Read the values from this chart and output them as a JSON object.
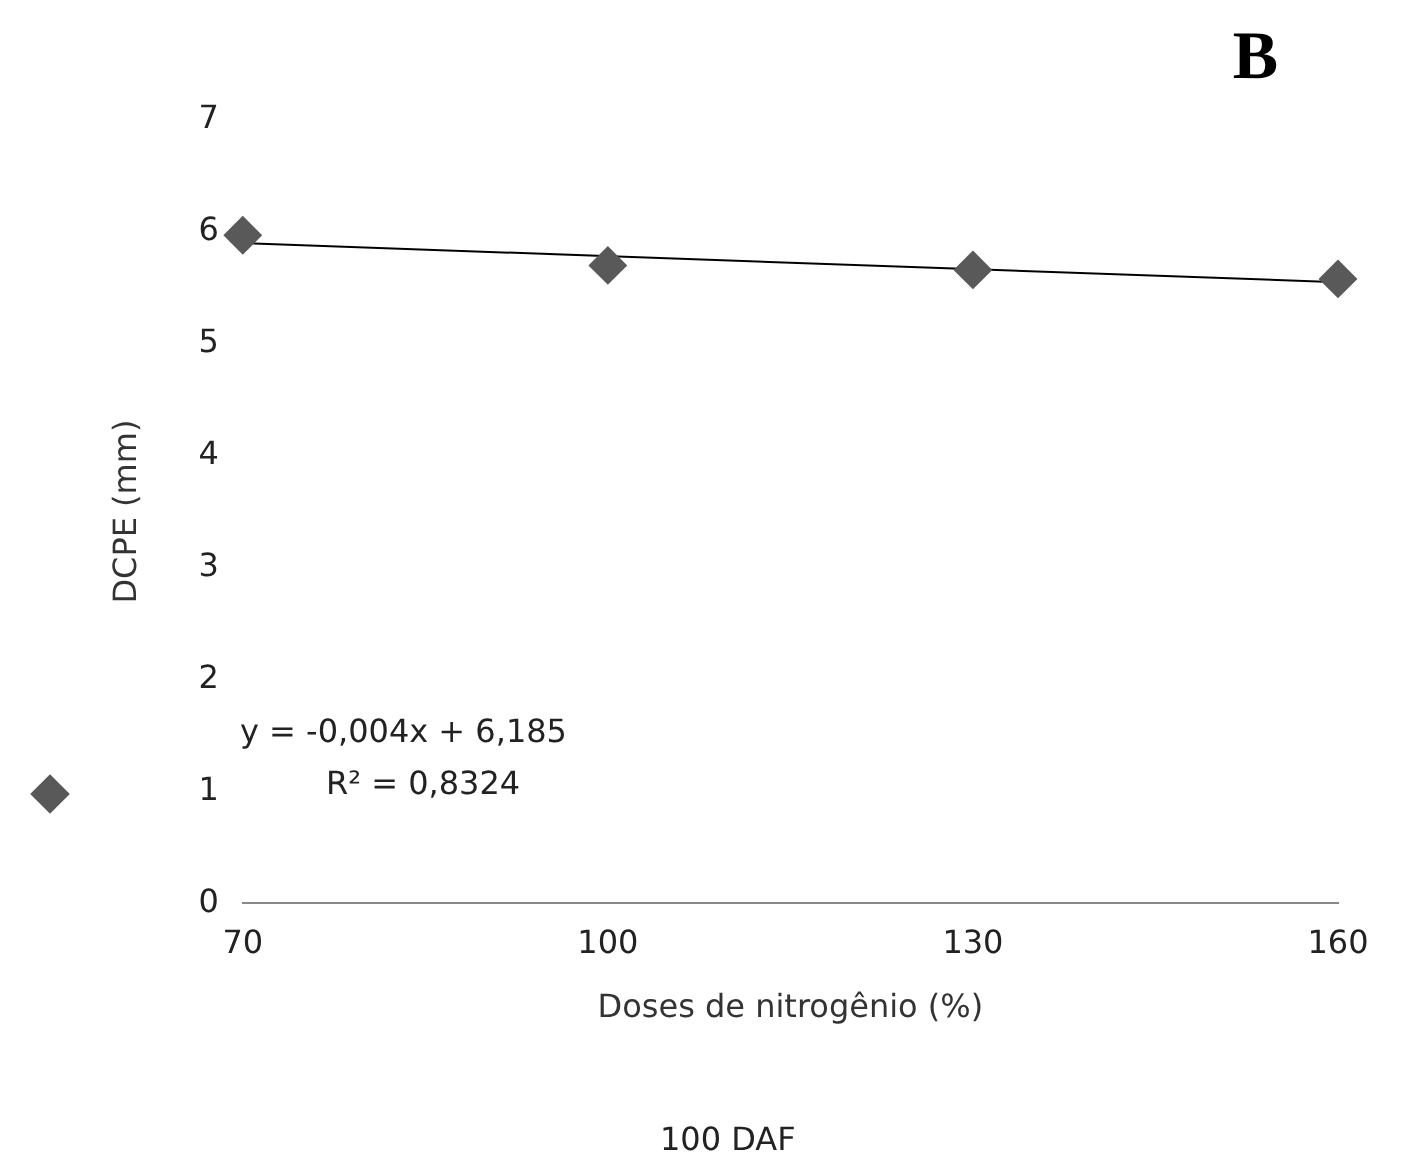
{
  "chart_data": {
    "type": "scatter",
    "title": "B",
    "xlabel": "Doses de nitrogênio (%)",
    "ylabel": "DCPE (mm)",
    "annotations": [
      "y = -0,004x + 6,185",
      "R² = 0,8324",
      "100 DAF"
    ],
    "x": [
      70,
      100,
      130,
      160
    ],
    "series": [
      {
        "type": "scatter",
        "color": "#595959",
        "values": [
          5.97,
          5.7,
          5.66,
          5.58
        ],
        "marker": "diamond"
      },
      {
        "type": "line",
        "color": "#000000",
        "x": [
          70,
          160
        ],
        "values": [
          5.9,
          5.55
        ],
        "marker": "none"
      }
    ],
    "xlim": [
      70,
      160
    ],
    "xticks": [
      70,
      100,
      130,
      160
    ],
    "ylim": [
      0,
      7
    ],
    "yticks": [
      0,
      1,
      2,
      3,
      4,
      5,
      6,
      7
    ],
    "grid": false,
    "legend": false
  }
}
